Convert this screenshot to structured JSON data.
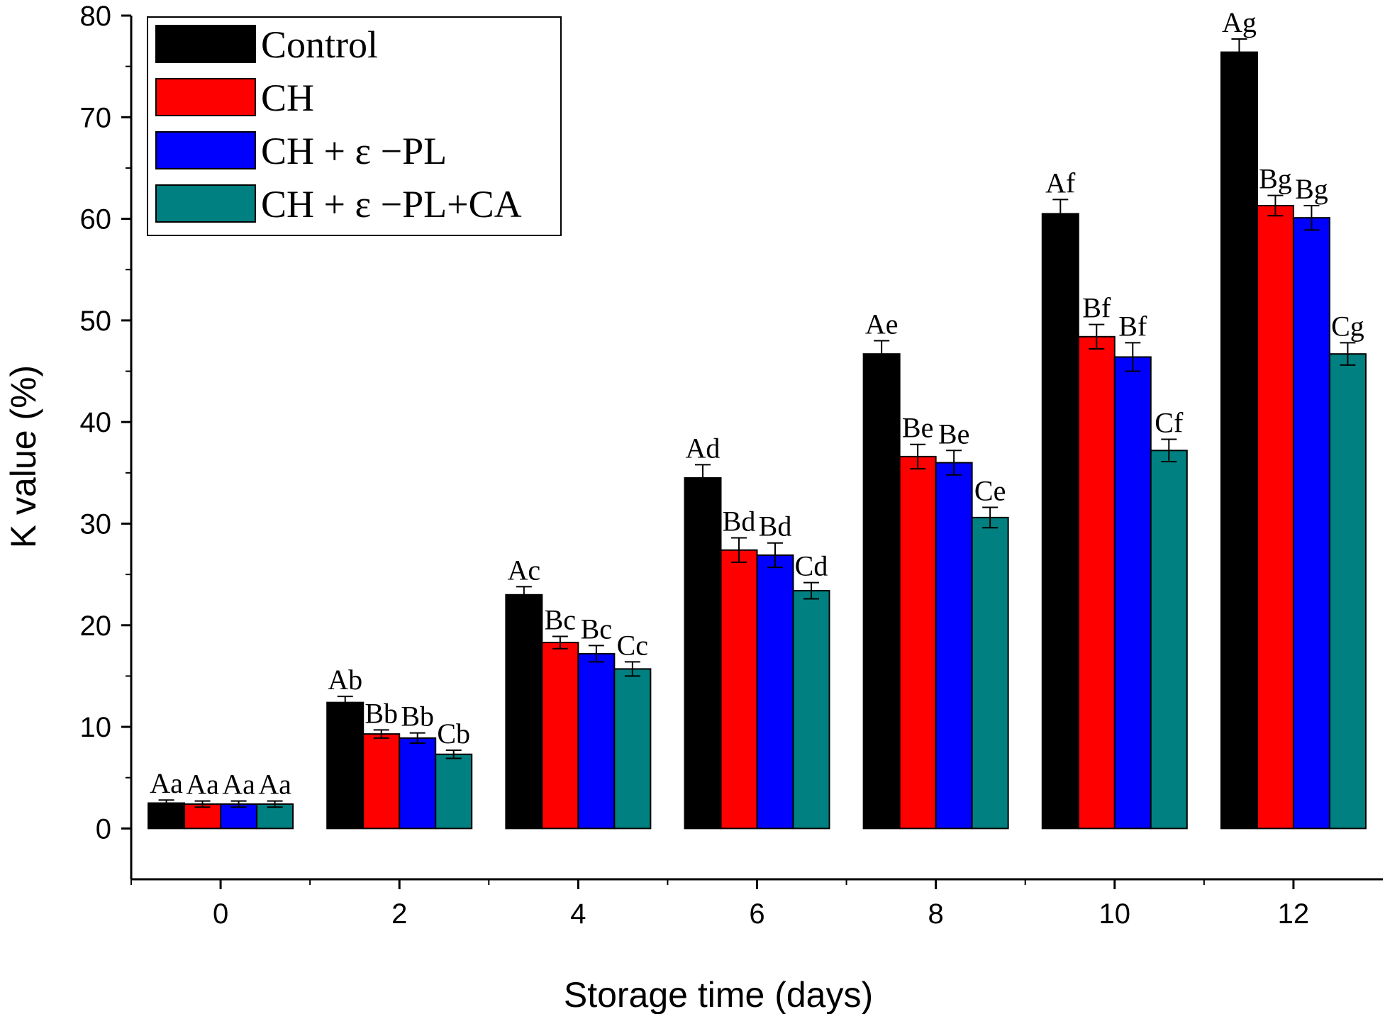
{
  "chart_data": {
    "type": "bar",
    "xlabel": "Storage time (days)",
    "ylabel": "K value (%)",
    "ylim": [
      -5,
      80
    ],
    "y_ticks": [
      0,
      10,
      20,
      30,
      40,
      50,
      60,
      70,
      80
    ],
    "categories": [
      "0",
      "2",
      "4",
      "6",
      "8",
      "10",
      "12"
    ],
    "legend_position": "top-left",
    "grid": false,
    "series": [
      {
        "name": "Control",
        "color": "#000000",
        "values": [
          2.5,
          12.4,
          23.0,
          34.5,
          46.7,
          60.5,
          76.4
        ],
        "errors": [
          0.3,
          0.6,
          0.8,
          1.3,
          1.3,
          1.4,
          1.3
        ],
        "labels": [
          "Aa",
          "Ab",
          "Ac",
          "Ad",
          "Ae",
          "Af",
          "Ag"
        ]
      },
      {
        "name": "CH",
        "color": "#ff0000",
        "values": [
          2.4,
          9.3,
          18.3,
          27.4,
          36.6,
          48.4,
          61.3
        ],
        "errors": [
          0.3,
          0.4,
          0.6,
          1.2,
          1.2,
          1.2,
          1.0
        ],
        "labels": [
          "Aa",
          "Bb",
          "Bc",
          "Bd",
          "Be",
          "Bf",
          "Bg"
        ]
      },
      {
        "name": "CH + ε −PL",
        "color": "#0000ff",
        "values": [
          2.4,
          8.9,
          17.2,
          26.9,
          36.0,
          46.4,
          60.1
        ],
        "errors": [
          0.3,
          0.5,
          0.8,
          1.2,
          1.2,
          1.4,
          1.2
        ],
        "labels": [
          "Aa",
          "Bb",
          "Bc",
          "Bd",
          "Be",
          "Bf",
          "Bg"
        ]
      },
      {
        "name": "CH + ε −PL+CA",
        "color": "#008080",
        "values": [
          2.4,
          7.3,
          15.7,
          23.4,
          30.6,
          37.2,
          46.7
        ],
        "errors": [
          0.3,
          0.4,
          0.7,
          0.8,
          1.0,
          1.1,
          1.1
        ],
        "labels": [
          "Aa",
          "Cb",
          "Cc",
          "Cd",
          "Ce",
          "Cf",
          "Cg"
        ]
      }
    ]
  }
}
